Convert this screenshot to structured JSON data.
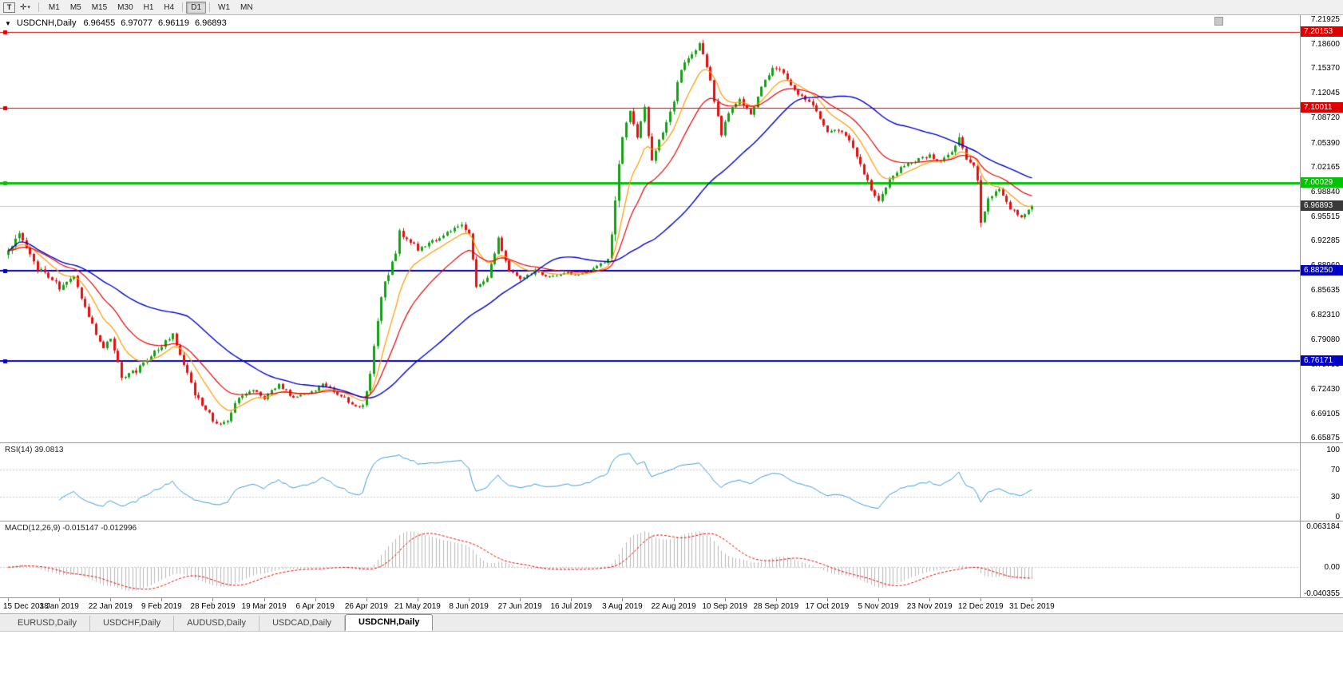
{
  "toolbar": {
    "text_tool_label": "T",
    "timeframes": [
      "M1",
      "M5",
      "M15",
      "M30",
      "H1",
      "H4",
      "D1",
      "W1",
      "MN"
    ],
    "active_timeframe": "D1"
  },
  "chart_data": {
    "type": "candlestick",
    "symbol": "USDCNH,Daily",
    "ohlc_display": {
      "open": "6.96455",
      "high": "6.97077",
      "low": "6.96119",
      "close": "6.96893"
    },
    "last_candle": {
      "o": 6.96455,
      "h": 6.97077,
      "l": 6.96119,
      "c": 6.96893
    },
    "price_range": {
      "max": 7.2245,
      "min": 6.6515
    },
    "y_ticks": [
      "7.21925",
      "7.18600",
      "7.15370",
      "7.12045",
      "7.08720",
      "7.05390",
      "7.02165",
      "6.98840",
      "6.95515",
      "6.92285",
      "6.88960",
      "6.85635",
      "6.82310",
      "6.79080",
      "6.75755",
      "6.72430",
      "6.69105",
      "6.65875"
    ],
    "x_labels": [
      "15 Dec 2018",
      "3 Jan 2019",
      "22 Jan 2019",
      "9 Feb 2019",
      "28 Feb 2019",
      "19 Mar 2019",
      "6 Apr 2019",
      "26 Apr 2019",
      "21 May 2019",
      "8 Jun 2019",
      "27 Jun 2019",
      "16 Jul 2019",
      "3 Aug 2019",
      "22 Aug 2019",
      "10 Sep 2019",
      "28 Sep 2019",
      "17 Oct 2019",
      "5 Nov 2019",
      "23 Nov 2019",
      "12 Dec 2019",
      "31 Dec 2019"
    ],
    "candles_per_label": 14,
    "count": 281,
    "waypoints": [
      [
        0,
        6.905,
        0.012
      ],
      [
        3,
        6.93,
        0.012
      ],
      [
        8,
        6.885,
        0.01
      ],
      [
        12,
        6.872,
        0.012
      ],
      [
        14,
        6.86,
        0.013
      ],
      [
        18,
        6.876,
        0.009
      ],
      [
        22,
        6.82,
        0.01
      ],
      [
        26,
        6.778,
        0.01
      ],
      [
        28,
        6.792,
        0.009
      ],
      [
        31,
        6.742,
        0.01
      ],
      [
        35,
        6.748,
        0.008
      ],
      [
        39,
        6.77,
        0.008
      ],
      [
        42,
        6.782,
        0.008
      ],
      [
        45,
        6.796,
        0.008
      ],
      [
        48,
        6.756,
        0.009
      ],
      [
        51,
        6.718,
        0.01
      ],
      [
        54,
        6.698,
        0.009
      ],
      [
        57,
        6.676,
        0.008
      ],
      [
        60,
        6.684,
        0.008
      ],
      [
        63,
        6.712,
        0.007
      ],
      [
        67,
        6.722,
        0.006
      ],
      [
        70,
        6.712,
        0.006
      ],
      [
        74,
        6.73,
        0.006
      ],
      [
        78,
        6.712,
        0.006
      ],
      [
        82,
        6.718,
        0.006
      ],
      [
        86,
        6.73,
        0.006
      ],
      [
        90,
        6.718,
        0.006
      ],
      [
        94,
        6.705,
        0.007
      ],
      [
        97,
        6.7,
        0.008
      ],
      [
        99,
        6.742,
        0.012
      ],
      [
        101,
        6.818,
        0.016
      ],
      [
        103,
        6.868,
        0.013
      ],
      [
        106,
        6.902,
        0.011
      ],
      [
        107,
        6.934,
        0.013
      ],
      [
        109,
        6.928,
        0.01
      ],
      [
        112,
        6.912,
        0.008
      ],
      [
        116,
        6.922,
        0.007
      ],
      [
        120,
        6.932,
        0.007
      ],
      [
        124,
        6.946,
        0.01
      ],
      [
        126,
        6.93,
        0.009
      ],
      [
        128,
        6.862,
        0.011
      ],
      [
        131,
        6.872,
        0.009
      ],
      [
        134,
        6.924,
        0.008
      ],
      [
        137,
        6.884,
        0.008
      ],
      [
        140,
        6.87,
        0.007
      ],
      [
        144,
        6.882,
        0.006
      ],
      [
        148,
        6.874,
        0.005
      ],
      [
        152,
        6.88,
        0.005
      ],
      [
        156,
        6.878,
        0.005
      ],
      [
        160,
        6.884,
        0.006
      ],
      [
        164,
        6.896,
        0.008
      ],
      [
        166,
        6.975,
        0.022
      ],
      [
        168,
        7.068,
        0.02
      ],
      [
        170,
        7.092,
        0.014
      ],
      [
        172,
        7.062,
        0.012
      ],
      [
        174,
        7.098,
        0.012
      ],
      [
        176,
        7.028,
        0.012
      ],
      [
        178,
        7.058,
        0.01
      ],
      [
        181,
        7.092,
        0.01
      ],
      [
        184,
        7.152,
        0.012
      ],
      [
        187,
        7.172,
        0.01
      ],
      [
        189,
        7.186,
        0.01
      ],
      [
        191,
        7.158,
        0.01
      ],
      [
        193,
        7.112,
        0.011
      ],
      [
        195,
        7.062,
        0.011
      ],
      [
        197,
        7.096,
        0.009
      ],
      [
        200,
        7.112,
        0.008
      ],
      [
        203,
        7.092,
        0.008
      ],
      [
        206,
        7.128,
        0.008
      ],
      [
        209,
        7.152,
        0.008
      ],
      [
        212,
        7.148,
        0.008
      ],
      [
        215,
        7.122,
        0.008
      ],
      [
        218,
        7.112,
        0.008
      ],
      [
        221,
        7.096,
        0.008
      ],
      [
        224,
        7.066,
        0.009
      ],
      [
        227,
        7.072,
        0.008
      ],
      [
        230,
        7.058,
        0.008
      ],
      [
        233,
        7.022,
        0.009
      ],
      [
        236,
        6.992,
        0.009
      ],
      [
        238,
        6.976,
        0.009
      ],
      [
        241,
        7.004,
        0.008
      ],
      [
        244,
        7.022,
        0.007
      ],
      [
        248,
        7.03,
        0.006
      ],
      [
        252,
        7.036,
        0.006
      ],
      [
        255,
        7.028,
        0.006
      ],
      [
        258,
        7.04,
        0.008
      ],
      [
        260,
        7.062,
        0.014
      ],
      [
        262,
        7.032,
        0.009
      ],
      [
        264,
        7.022,
        0.008
      ],
      [
        265,
        7.0,
        0.012
      ],
      [
        266,
        6.945,
        0.018
      ],
      [
        268,
        6.978,
        0.01
      ],
      [
        271,
        6.992,
        0.008
      ],
      [
        274,
        6.966,
        0.008
      ],
      [
        277,
        6.954,
        0.007
      ],
      [
        280,
        6.96893,
        0.006
      ]
    ],
    "hlines": [
      {
        "value": 7.20153,
        "label": "7.20153",
        "color": "#dd0000",
        "width": 1
      },
      {
        "value": 7.10011,
        "label": "7.10011",
        "color": "#dd0000",
        "width": 1
      },
      {
        "value": 7.00029,
        "label": "7.00029",
        "color": "#00c400",
        "width": 3
      },
      {
        "value": 6.8825,
        "label": "6.88250",
        "color": "#0000c8",
        "width": 2
      },
      {
        "value": 6.76171,
        "label": "6.76171",
        "color": "#0000c8",
        "width": 2
      }
    ],
    "current_price": {
      "value": 6.96893,
      "label": "6.96893",
      "bg": "#3a3a3a"
    },
    "colors": {
      "up": "#14a114",
      "down": "#e60f0f",
      "ma_fast": "#ff9900",
      "ma_mid": "#e60000",
      "ma_slow": "#0000cc",
      "bid_line": "#c8c8c8"
    },
    "ma_periods": {
      "fast": 10,
      "mid": 21,
      "slow": 50
    }
  },
  "rsi": {
    "label": "RSI(14) 39.0813",
    "period": 14,
    "levels": [
      100,
      70,
      30,
      0
    ],
    "color": "#3e9bd8",
    "level_color": "#c8c8c8",
    "current": 39.0813
  },
  "macd": {
    "label": "MACD(12,26,9) -0.015147 -0.012996",
    "fast": 12,
    "slow": 26,
    "signal": 9,
    "scale_max": 0.063184,
    "scale_min": -0.040355,
    "y_ticks": [
      "0.063184",
      "0.00",
      "-0.040355"
    ],
    "hist_color": "#b8b8b8",
    "signal_color": "#e60000",
    "values_display": [
      "-0.015147",
      "-0.012996"
    ]
  },
  "tabs": [
    {
      "label": "EURUSD,Daily",
      "active": false
    },
    {
      "label": "USDCHF,Daily",
      "active": false
    },
    {
      "label": "AUDUSD,Daily",
      "active": false
    },
    {
      "label": "USDCAD,Daily",
      "active": false
    },
    {
      "label": "USDCNH,Daily",
      "active": true
    }
  ]
}
